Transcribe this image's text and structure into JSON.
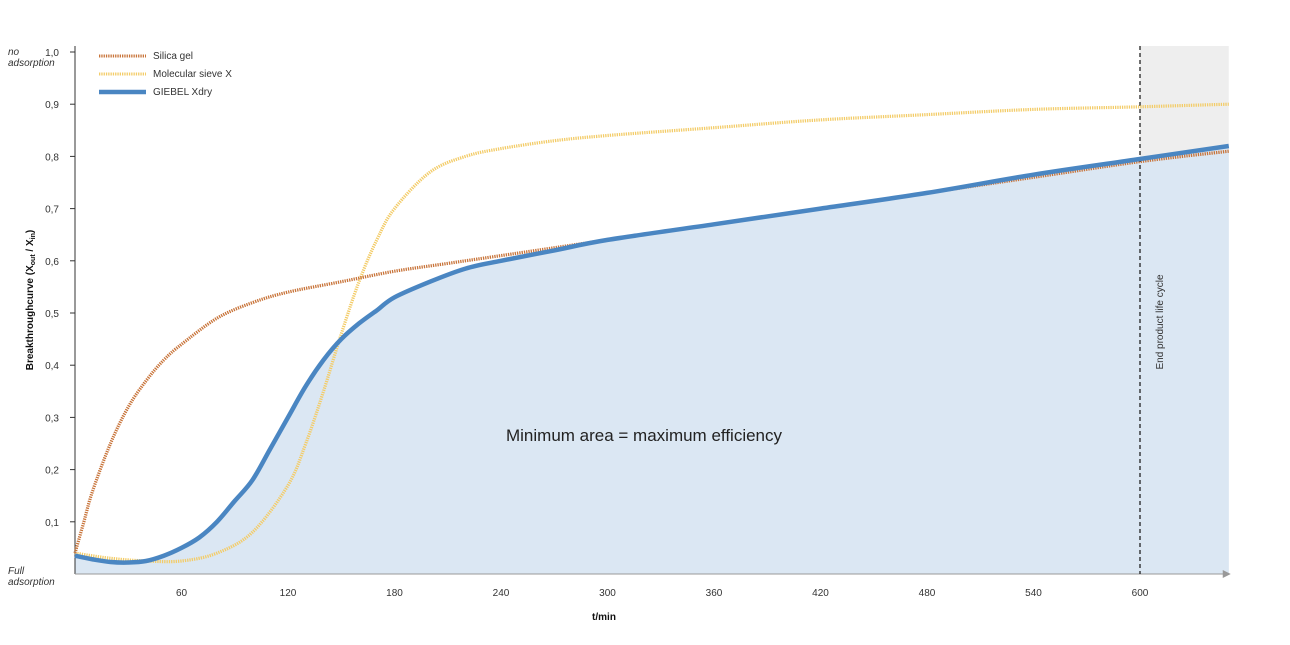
{
  "colors": {
    "silica": "#c8743a",
    "sieve": "#f3cc68",
    "xdry": "#4a86c2",
    "area": "#dbe7f3",
    "shade": "#eeeeee",
    "axis": "#333333"
  },
  "chart_data": {
    "type": "line",
    "xlabel": "t/min",
    "ylabel": "Breakthroughcurve (X",
    "ylabel_sub1": "out",
    "ylabel_mid": " / X",
    "ylabel_sub2": "in",
    "ylabel_end": ")",
    "y_top_note": [
      "no",
      "adsorption"
    ],
    "y_bottom_note": [
      "Full",
      "adsorption"
    ],
    "xlim": [
      0,
      650
    ],
    "ylim": [
      0,
      1.0
    ],
    "x_ticks": [
      60,
      120,
      180,
      240,
      300,
      360,
      420,
      480,
      540,
      600
    ],
    "y_ticks": [
      "0,1",
      "0,2",
      "0,3",
      "0,4",
      "0,5",
      "0,6",
      "0,7",
      "0,8",
      "0,9",
      "1,0"
    ],
    "y_tick_values": [
      0.1,
      0.2,
      0.3,
      0.4,
      0.5,
      0.6,
      0.7,
      0.8,
      0.9,
      1.0
    ],
    "legend": [
      "Silica gel",
      "Molecular sieve X",
      "GIEBEL Xdry"
    ],
    "legend_position": "top-left",
    "annotation": "Minimum area = maximum efficiency",
    "end_of_life_x": 600,
    "end_of_life_label": "End product life cycle",
    "series": [
      {
        "name": "Silica gel",
        "style": "dotted",
        "x": [
          0,
          5,
          10,
          20,
          30,
          40,
          50,
          60,
          80,
          100,
          120,
          150,
          180,
          210,
          240,
          300,
          360,
          420,
          480,
          540,
          600,
          650
        ],
        "y": [
          0.04,
          0.1,
          0.16,
          0.25,
          0.32,
          0.37,
          0.41,
          0.44,
          0.49,
          0.52,
          0.54,
          0.56,
          0.58,
          0.595,
          0.61,
          0.64,
          0.67,
          0.7,
          0.73,
          0.76,
          0.79,
          0.81
        ]
      },
      {
        "name": "Molecular sieve X",
        "style": "dotted",
        "x": [
          0,
          20,
          40,
          60,
          80,
          100,
          120,
          130,
          140,
          150,
          160,
          170,
          180,
          200,
          220,
          240,
          270,
          300,
          360,
          420,
          480,
          540,
          600,
          650
        ],
        "y": [
          0.04,
          0.03,
          0.025,
          0.025,
          0.04,
          0.08,
          0.17,
          0.25,
          0.35,
          0.46,
          0.56,
          0.64,
          0.7,
          0.77,
          0.8,
          0.815,
          0.83,
          0.84,
          0.855,
          0.87,
          0.88,
          0.89,
          0.895,
          0.9
        ]
      },
      {
        "name": "GIEBEL Xdry",
        "style": "solid",
        "x": [
          0,
          10,
          20,
          30,
          40,
          50,
          60,
          70,
          80,
          90,
          100,
          110,
          120,
          130,
          140,
          150,
          160,
          170,
          180,
          200,
          220,
          240,
          270,
          300,
          360,
          420,
          480,
          540,
          600,
          650
        ],
        "y": [
          0.035,
          0.028,
          0.023,
          0.022,
          0.025,
          0.035,
          0.05,
          0.07,
          0.1,
          0.14,
          0.18,
          0.24,
          0.3,
          0.36,
          0.41,
          0.45,
          0.48,
          0.505,
          0.53,
          0.56,
          0.585,
          0.6,
          0.62,
          0.64,
          0.67,
          0.7,
          0.73,
          0.765,
          0.795,
          0.82
        ]
      }
    ]
  }
}
